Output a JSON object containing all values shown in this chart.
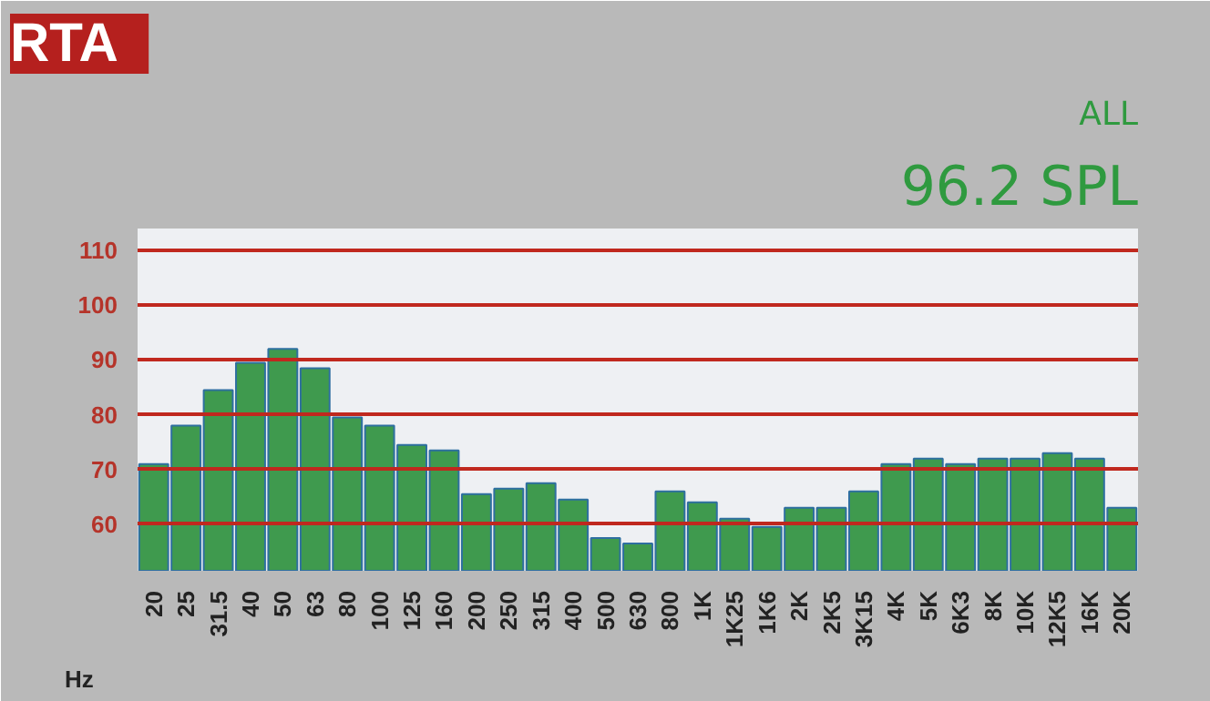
{
  "chart_data": {
    "type": "bar",
    "title": "RTA",
    "xlabel": "Hz",
    "annotations": [
      "ALL",
      "96.2 SPL"
    ],
    "categories": [
      "20",
      "25",
      "31.5",
      "40",
      "50",
      "63",
      "80",
      "100",
      "125",
      "160",
      "200",
      "250",
      "315",
      "400",
      "500",
      "630",
      "800",
      "1K",
      "1K25",
      "1K6",
      "2K",
      "2K5",
      "3K15",
      "4K",
      "5K",
      "6K3",
      "8K",
      "10K",
      "12K5",
      "16K",
      "20K"
    ],
    "values": [
      71,
      78,
      84.5,
      89.5,
      92,
      88.5,
      79.5,
      78,
      74.5,
      73.5,
      65.5,
      66.5,
      67.5,
      64.5,
      57.5,
      56.5,
      66,
      64,
      61,
      59.5,
      63,
      63,
      66,
      71,
      72,
      71,
      72,
      72,
      73,
      72,
      63
    ],
    "color": "#3f9a4e",
    "ylim": [
      51.5,
      114
    ],
    "yticks": [
      60,
      70,
      80,
      90,
      100,
      110
    ],
    "grid": "y"
  }
}
